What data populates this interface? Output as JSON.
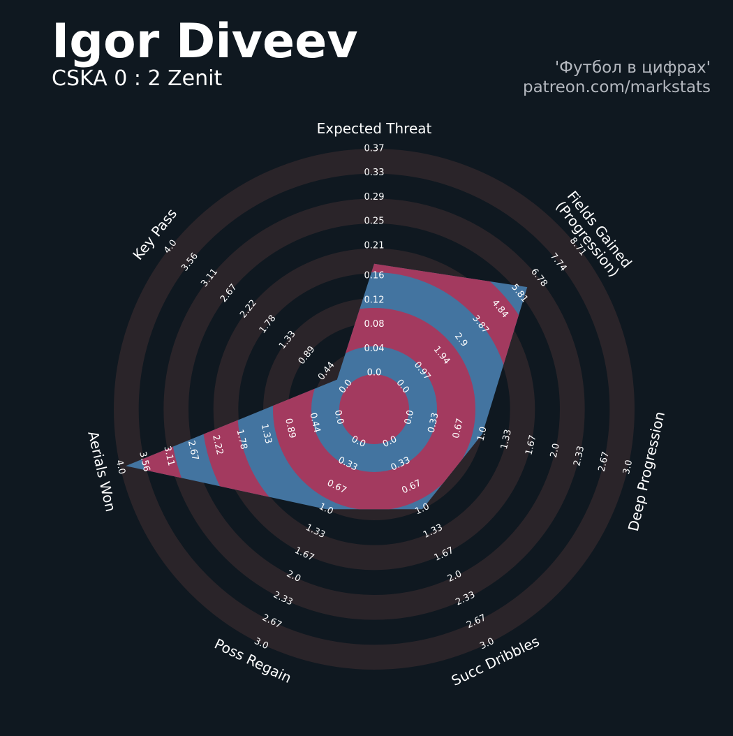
{
  "chart_data": {
    "type": "radar",
    "title": "Igor Diveev",
    "subtitle": "CSKA 0 : 2 Zenit",
    "credits": [
      "'Футбол в цифрах'",
      "patreon.com/markstats"
    ],
    "params": [
      "Expected Threat",
      "Fields Gained\n(Progression)",
      "Deep Progression",
      "Succ Dribbles",
      "Poss Regain",
      "Aerials Won",
      "Key Pass"
    ],
    "ranges": [
      [
        0,
        0.37
      ],
      [
        0,
        8.71
      ],
      [
        0,
        3
      ],
      [
        0,
        3
      ],
      [
        0,
        3
      ],
      [
        0,
        4
      ],
      [
        0,
        4
      ]
    ],
    "ticks": [
      [
        {
          "value": 0,
          "label": "0.0"
        },
        0.04,
        0.08,
        0.12,
        0.16,
        0.21,
        0.25,
        0.29,
        0.33,
        0.37
      ],
      [
        {
          "value": 0,
          "label": "0.0"
        },
        0.97,
        1.94,
        2.9,
        3.87,
        4.84,
        5.81,
        6.78,
        7.74,
        8.71
      ],
      [
        {
          "value": 0,
          "label": "0.0"
        },
        0.33,
        0.67,
        {
          "value": 1,
          "label": "1.0"
        },
        1.33,
        1.67,
        {
          "value": 2,
          "label": "2.0"
        },
        2.33,
        2.67,
        {
          "value": 3,
          "label": "3.0"
        }
      ],
      [
        {
          "value": 0,
          "label": "0.0"
        },
        0.33,
        0.67,
        {
          "value": 1,
          "label": "1.0"
        },
        1.33,
        1.67,
        {
          "value": 2,
          "label": "2.0"
        },
        2.33,
        2.67,
        {
          "value": 3,
          "label": "3.0"
        }
      ],
      [
        {
          "value": 0,
          "label": "0.0"
        },
        0.33,
        0.67,
        {
          "value": 1,
          "label": "1.0"
        },
        1.33,
        1.67,
        {
          "value": 2,
          "label": "2.0"
        },
        2.33,
        2.67,
        {
          "value": 3,
          "label": "3.0"
        }
      ],
      [
        {
          "value": 0,
          "label": "0.0"
        },
        0.44,
        0.89,
        1.33,
        1.78,
        2.22,
        2.67,
        3.11,
        3.56,
        {
          "value": 4,
          "label": "4.0"
        }
      ],
      [
        {
          "value": 0,
          "label": "0.0"
        },
        0.44,
        0.89,
        1.33,
        1.78,
        2.22,
        2.67,
        3.11,
        3.56,
        {
          "value": 4,
          "label": "4.0"
        }
      ]
    ],
    "values": [
      0.18,
      6.2,
      1.0,
      1.0,
      1.0,
      3.9,
      0.2
    ],
    "colors": [
      "#4374a0",
      "#a33a5f"
    ],
    "ring_color": "#2a2429"
  }
}
